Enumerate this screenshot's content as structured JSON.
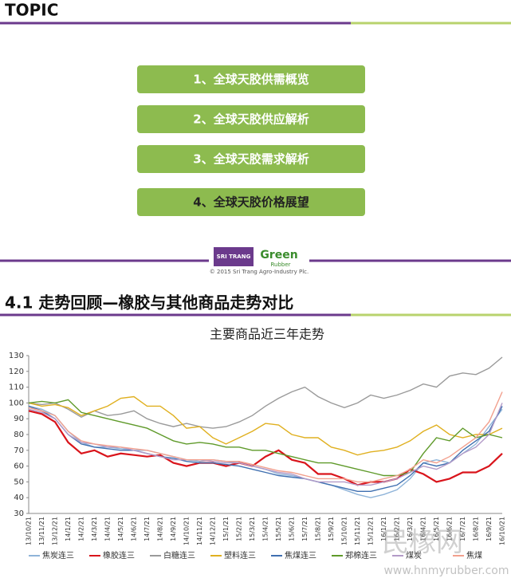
{
  "slide": {
    "topic": "TOPIC",
    "items": [
      "1、全球天胶供需概览",
      "2、全球天胶供应解析",
      "3、全球天胶需求解析",
      "4、全球天胶价格展望"
    ],
    "logo_left": "SRI TRANG",
    "logo_right": "Green",
    "logo_right_sub": "Rubber",
    "copyright": "© 2015 Sri Trang Agro-Industry Plc.",
    "section_title": "4.1 走势回顾—橡胶与其他商品走势对比",
    "watermark": "民橡网",
    "watermark_url": "www.hnmyrubber.com"
  },
  "chart_data": {
    "type": "line",
    "title": "主要商品近三年走势",
    "categories": [
      "13/10/21",
      "13/11/21",
      "13/12/21",
      "14/1/21",
      "14/2/21",
      "14/3/21",
      "14/4/21",
      "14/5/21",
      "14/6/21",
      "14/7/21",
      "14/8/21",
      "14/9/21",
      "14/10/21",
      "14/11/21",
      "14/12/21",
      "15/1/21",
      "15/2/21",
      "15/3/21",
      "15/4/21",
      "15/5/21",
      "15/6/21",
      "15/7/21",
      "15/8/21",
      "15/9/21",
      "15/10/21",
      "15/11/21",
      "15/12/21",
      "16/1/21",
      "16/2/21",
      "16/3/21",
      "16/4/21",
      "16/5/21",
      "16/6/21",
      "16/7/21",
      "16/8/21",
      "16/9/21",
      "16/10/21"
    ],
    "ylim": [
      30,
      130
    ],
    "yticks": [
      30,
      40,
      50,
      60,
      70,
      80,
      90,
      100,
      110,
      120,
      130
    ],
    "grid": false,
    "legend": "bottom",
    "series": [
      {
        "name": "焦炭连三",
        "color": "#8fb4d9",
        "values": [
          98,
          96,
          92,
          82,
          75,
          72,
          72,
          71,
          70,
          70,
          68,
          66,
          64,
          63,
          64,
          63,
          62,
          60,
          58,
          55,
          54,
          52,
          50,
          48,
          45,
          42,
          40,
          42,
          45,
          52,
          62,
          64,
          62,
          68,
          74,
          85,
          96
        ]
      },
      {
        "name": "橡胶连三",
        "color": "#d9141b",
        "values": [
          95,
          93,
          88,
          75,
          68,
          70,
          66,
          68,
          67,
          66,
          67,
          62,
          60,
          62,
          62,
          60,
          62,
          60,
          66,
          70,
          64,
          62,
          55,
          55,
          52,
          48,
          50,
          50,
          52,
          58,
          55,
          50,
          52,
          56,
          56,
          60,
          68
        ]
      },
      {
        "name": "白糖连三",
        "color": "#9a9a9a",
        "values": [
          100,
          99,
          100,
          96,
          91,
          95,
          92,
          93,
          95,
          90,
          87,
          85,
          87,
          85,
          84,
          85,
          88,
          92,
          98,
          103,
          107,
          110,
          104,
          100,
          97,
          100,
          105,
          103,
          105,
          108,
          112,
          110,
          117,
          119,
          118,
          122,
          129
        ]
      },
      {
        "name": "塑料连三",
        "color": "#e0b020",
        "values": [
          100,
          98,
          99,
          97,
          92,
          95,
          98,
          103,
          104,
          98,
          98,
          92,
          84,
          85,
          78,
          74,
          78,
          82,
          87,
          86,
          80,
          78,
          78,
          72,
          70,
          67,
          69,
          70,
          72,
          76,
          82,
          86,
          80,
          78,
          80,
          80,
          84
        ]
      },
      {
        "name": "焦煤连三",
        "color": "#3f6fb0",
        "values": [
          98,
          95,
          90,
          80,
          74,
          72,
          71,
          70,
          70,
          68,
          66,
          65,
          63,
          62,
          62,
          61,
          60,
          58,
          56,
          54,
          53,
          52,
          50,
          48,
          46,
          44,
          44,
          46,
          48,
          54,
          62,
          60,
          62,
          70,
          76,
          82,
          98
        ]
      },
      {
        "name": "郑棉连三",
        "color": "#5f9a2a",
        "values": [
          100,
          101,
          100,
          102,
          94,
          92,
          90,
          88,
          86,
          84,
          80,
          76,
          74,
          75,
          74,
          72,
          72,
          70,
          70,
          68,
          66,
          64,
          62,
          62,
          60,
          58,
          56,
          54,
          54,
          56,
          68,
          78,
          76,
          84,
          78,
          80,
          78
        ]
      },
      {
        "name": "煤炭",
        "color": "#b39bc8",
        "values": [
          96,
          94,
          90,
          80,
          75,
          74,
          72,
          72,
          70,
          68,
          66,
          64,
          64,
          64,
          63,
          62,
          62,
          60,
          58,
          56,
          55,
          52,
          50,
          50,
          50,
          48,
          48,
          50,
          52,
          56,
          60,
          58,
          62,
          68,
          72,
          80,
          100
        ]
      },
      {
        "name": "焦煤",
        "color": "#f2a08e",
        "values": [
          97,
          95,
          92,
          82,
          76,
          74,
          73,
          72,
          71,
          70,
          68,
          66,
          64,
          64,
          64,
          63,
          63,
          61,
          59,
          57,
          56,
          54,
          52,
          52,
          52,
          50,
          50,
          52,
          54,
          58,
          64,
          62,
          66,
          72,
          78,
          88,
          107
        ]
      }
    ]
  }
}
